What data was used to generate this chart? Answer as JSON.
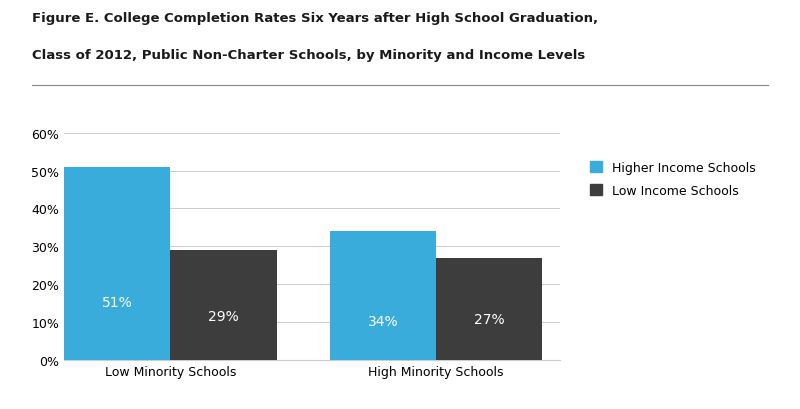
{
  "title_line1": "Figure E. College Completion Rates Six Years after High School Graduation,",
  "title_line2": "Class of 2012, Public Non-Charter Schools, by Minority and Income Levels",
  "categories": [
    "Low Minority Schools",
    "High Minority Schools"
  ],
  "higher_income_values": [
    0.51,
    0.34
  ],
  "low_income_values": [
    0.29,
    0.27
  ],
  "higher_income_labels": [
    "51%",
    "34%"
  ],
  "low_income_labels": [
    "29%",
    "27%"
  ],
  "higher_income_color": "#3aacdc",
  "low_income_color": "#3d3d3d",
  "legend_labels": [
    "Higher Income Schools",
    "Low Income Schools"
  ],
  "ylim": [
    0,
    0.65
  ],
  "yticks": [
    0.0,
    0.1,
    0.2,
    0.3,
    0.4,
    0.5,
    0.6
  ],
  "ytick_labels": [
    "0%",
    "10%",
    "20%",
    "30%",
    "40%",
    "50%",
    "60%"
  ],
  "bar_width": 0.3,
  "background_color": "#ffffff",
  "label_fontsize": 10,
  "title_fontsize": 9.5,
  "tick_fontsize": 9,
  "legend_fontsize": 9,
  "grid_color": "#cccccc",
  "separator_color": "#888888",
  "title_color": "#1a1a1a"
}
